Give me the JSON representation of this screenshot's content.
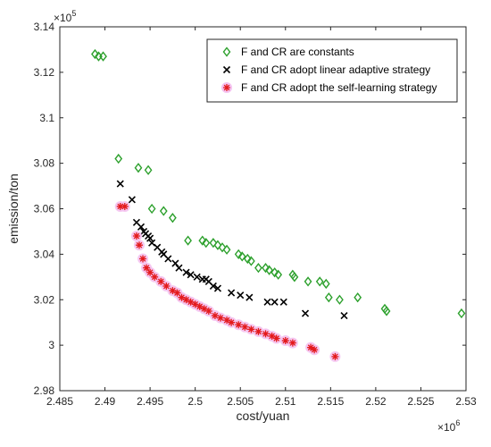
{
  "chart_data": {
    "type": "scatter",
    "xlabel": "cost/yuan",
    "ylabel": "emission/ton",
    "x_exponent_label": "×10",
    "x_exponent_power": "6",
    "y_exponent_label": "×10",
    "y_exponent_power": "5",
    "xlim": [
      2.485,
      2.53
    ],
    "ylim": [
      2.98,
      3.14
    ],
    "x_ticks": [
      "2.485",
      "2.49",
      "2.495",
      "2.5",
      "2.505",
      "2.51",
      "2.515",
      "2.52",
      "2.525",
      "2.53"
    ],
    "y_ticks": [
      "2.98",
      "3",
      "3.02",
      "3.04",
      "3.06",
      "3.08",
      "3.1",
      "3.12",
      "3.14"
    ],
    "grid": false,
    "legend_position": "top-right",
    "series": [
      {
        "name": "F and CR are constants",
        "marker": "diamond",
        "color": "#2ca02c",
        "points": [
          [
            2.4889,
            3.128
          ],
          [
            2.4893,
            3.127
          ],
          [
            2.4898,
            3.127
          ],
          [
            2.4915,
            3.082
          ],
          [
            2.4937,
            3.078
          ],
          [
            2.4948,
            3.077
          ],
          [
            2.4952,
            3.06
          ],
          [
            2.4965,
            3.059
          ],
          [
            2.4975,
            3.056
          ],
          [
            2.4992,
            3.046
          ],
          [
            2.5008,
            3.046
          ],
          [
            2.5012,
            3.045
          ],
          [
            2.502,
            3.045
          ],
          [
            2.5025,
            3.044
          ],
          [
            2.503,
            3.043
          ],
          [
            2.5035,
            3.042
          ],
          [
            2.5048,
            3.04
          ],
          [
            2.5052,
            3.039
          ],
          [
            2.5058,
            3.038
          ],
          [
            2.5062,
            3.037
          ],
          [
            2.507,
            3.034
          ],
          [
            2.5078,
            3.034
          ],
          [
            2.5082,
            3.033
          ],
          [
            2.5088,
            3.032
          ],
          [
            2.5092,
            3.031
          ],
          [
            2.5108,
            3.031
          ],
          [
            2.511,
            3.03
          ],
          [
            2.5125,
            3.028
          ],
          [
            2.5138,
            3.028
          ],
          [
            2.5145,
            3.027
          ],
          [
            2.5148,
            3.021
          ],
          [
            2.516,
            3.02
          ],
          [
            2.518,
            3.021
          ],
          [
            2.521,
            3.016
          ],
          [
            2.5212,
            3.015
          ],
          [
            2.5295,
            3.014
          ]
        ]
      },
      {
        "name": "F and CR adopt linear adaptive strategy",
        "marker": "x",
        "color": "#000000",
        "points": [
          [
            2.4917,
            3.071
          ],
          [
            2.493,
            3.064
          ],
          [
            2.4935,
            3.054
          ],
          [
            2.494,
            3.052
          ],
          [
            2.4943,
            3.05
          ],
          [
            2.4945,
            3.049
          ],
          [
            2.4948,
            3.048
          ],
          [
            2.495,
            3.047
          ],
          [
            2.4952,
            3.045
          ],
          [
            2.4958,
            3.043
          ],
          [
            2.4963,
            3.041
          ],
          [
            2.4965,
            3.04
          ],
          [
            2.497,
            3.038
          ],
          [
            2.4978,
            3.036
          ],
          [
            2.4982,
            3.034
          ],
          [
            2.499,
            3.032
          ],
          [
            2.4995,
            3.031
          ],
          [
            2.5002,
            3.03
          ],
          [
            2.5008,
            3.029
          ],
          [
            2.5012,
            3.029
          ],
          [
            2.5015,
            3.028
          ],
          [
            2.502,
            3.026
          ],
          [
            2.5025,
            3.025
          ],
          [
            2.504,
            3.023
          ],
          [
            2.505,
            3.022
          ],
          [
            2.506,
            3.021
          ],
          [
            2.508,
            3.019
          ],
          [
            2.5088,
            3.019
          ],
          [
            2.5098,
            3.019
          ],
          [
            2.5122,
            3.014
          ],
          [
            2.5165,
            3.013
          ]
        ]
      },
      {
        "name": "F and CR adopt the self-learning strategy",
        "marker": "asterisk",
        "color": "#e41a1c",
        "halo_color": "#f4c2f0",
        "points": [
          [
            2.4917,
            3.061
          ],
          [
            2.4922,
            3.061
          ],
          [
            2.4935,
            3.048
          ],
          [
            2.4938,
            3.044
          ],
          [
            2.4942,
            3.038
          ],
          [
            2.4946,
            3.034
          ],
          [
            2.495,
            3.032
          ],
          [
            2.4955,
            3.03
          ],
          [
            2.4962,
            3.028
          ],
          [
            2.4968,
            3.026
          ],
          [
            2.4975,
            3.024
          ],
          [
            2.498,
            3.023
          ],
          [
            2.4985,
            3.021
          ],
          [
            2.499,
            3.02
          ],
          [
            2.4995,
            3.019
          ],
          [
            2.5,
            3.018
          ],
          [
            2.5005,
            3.017
          ],
          [
            2.501,
            3.016
          ],
          [
            2.5015,
            3.015
          ],
          [
            2.5022,
            3.013
          ],
          [
            2.5028,
            3.012
          ],
          [
            2.5035,
            3.011
          ],
          [
            2.504,
            3.01
          ],
          [
            2.5048,
            3.009
          ],
          [
            2.5055,
            3.008
          ],
          [
            2.5062,
            3.007
          ],
          [
            2.507,
            3.006
          ],
          [
            2.5078,
            3.005
          ],
          [
            2.5085,
            3.004
          ],
          [
            2.509,
            3.003
          ],
          [
            2.51,
            3.002
          ],
          [
            2.5108,
            3.001
          ],
          [
            2.5128,
            2.999
          ],
          [
            2.5132,
            2.998
          ],
          [
            2.5155,
            2.995
          ]
        ]
      }
    ]
  }
}
